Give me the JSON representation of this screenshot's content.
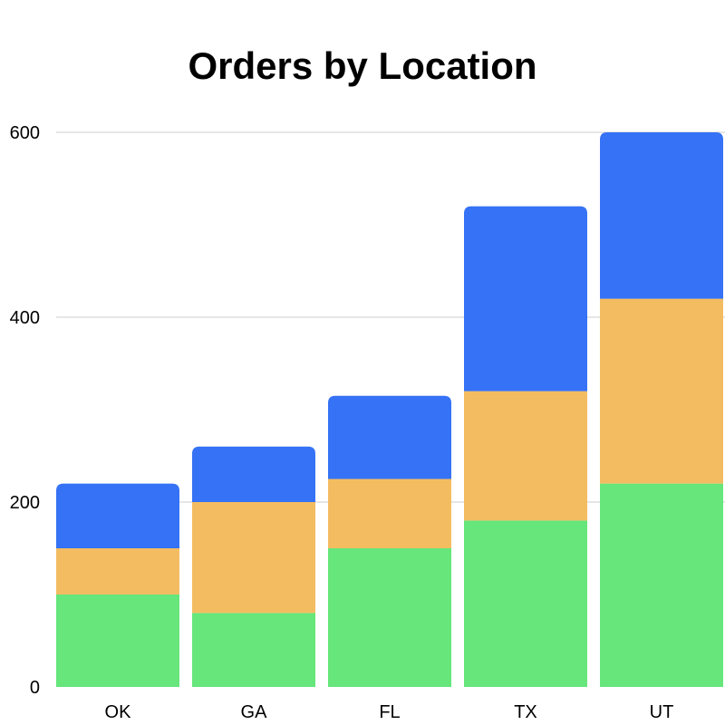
{
  "chart_data": {
    "type": "bar",
    "stacked": true,
    "title": "Orders by Location",
    "xlabel": "",
    "ylabel": "",
    "categories": [
      "OK",
      "GA",
      "FL",
      "TX",
      "UT"
    ],
    "series": [
      {
        "color": "#66e67b",
        "values": [
          100,
          80,
          150,
          180,
          220
        ]
      },
      {
        "color": "#f4bc61",
        "values": [
          50,
          120,
          75,
          140,
          200
        ]
      },
      {
        "color": "#3572f5",
        "values": [
          70,
          60,
          90,
          200,
          180
        ]
      }
    ],
    "ylim": [
      0,
      600
    ],
    "yticks": [
      0,
      200,
      400,
      600
    ],
    "ytick_labels": [
      "0",
      "200",
      "400",
      "600"
    ],
    "grid": true,
    "gridline_color": "#cccccc",
    "background_color": "#ffffff"
  }
}
